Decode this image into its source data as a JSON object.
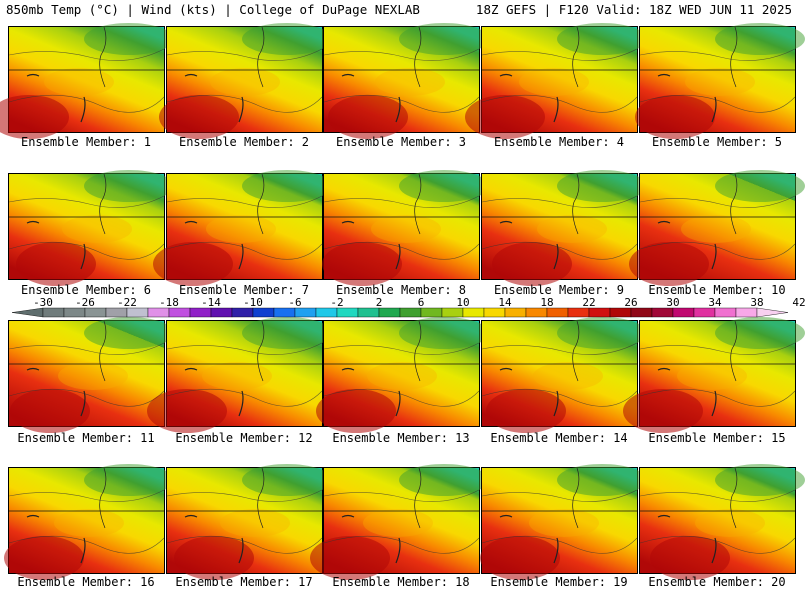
{
  "header": {
    "left": "850mb Temp (°C) | Wind (kts) | College of DuPage NEXLAB",
    "right": "18Z GEFS | F120 Valid: 18Z WED JUN 11 2025"
  },
  "panels": [
    {
      "label": "Ensemble Member: 1"
    },
    {
      "label": "Ensemble Member: 2"
    },
    {
      "label": "Ensemble Member: 3"
    },
    {
      "label": "Ensemble Member: 4"
    },
    {
      "label": "Ensemble Member: 5"
    },
    {
      "label": "Ensemble Member: 6"
    },
    {
      "label": "Ensemble Member: 7"
    },
    {
      "label": "Ensemble Member: 8"
    },
    {
      "label": "Ensemble Member: 9"
    },
    {
      "label": "Ensemble Member: 10"
    },
    {
      "label": "Ensemble Member: 11"
    },
    {
      "label": "Ensemble Member: 12"
    },
    {
      "label": "Ensemble Member: 13"
    },
    {
      "label": "Ensemble Member: 14"
    },
    {
      "label": "Ensemble Member: 15"
    },
    {
      "label": "Ensemble Member: 16"
    },
    {
      "label": "Ensemble Member: 17"
    },
    {
      "label": "Ensemble Member: 18"
    },
    {
      "label": "Ensemble Member: 19"
    },
    {
      "label": "Ensemble Member: 20"
    }
  ],
  "colorbar": {
    "tick_labels": [
      "-30",
      "-26",
      "-22",
      "-18",
      "-14",
      "-10",
      "-6",
      "-2",
      "2",
      "6",
      "10",
      "14",
      "18",
      "22",
      "26",
      "30",
      "34",
      "38",
      "42"
    ],
    "colors": [
      "#5f6e6e",
      "#707c7c",
      "#7d8888",
      "#8a9494",
      "#a0a0a8",
      "#c0c0d0",
      "#e090e8",
      "#c050e0",
      "#9020c8",
      "#6010b0",
      "#3020a8",
      "#1040d0",
      "#1870f0",
      "#20a0f0",
      "#20c8e8",
      "#20d8c0",
      "#20c090",
      "#20a850",
      "#40a030",
      "#70b820",
      "#a8d010",
      "#e8e800",
      "#f8d800",
      "#f8b000",
      "#f88800",
      "#f06000",
      "#e83010",
      "#d01010",
      "#b00808",
      "#900818",
      "#a00838",
      "#c00870",
      "#e030a0",
      "#f070d0",
      "#f8a8e8",
      "#f8d0f0"
    ]
  }
}
